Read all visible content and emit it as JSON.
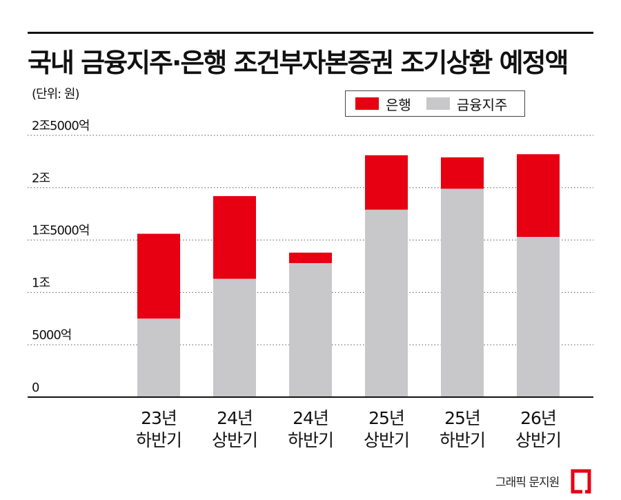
{
  "title": "국내 금융지주·은행 조건부자본증권 조기상환 예정액",
  "unit": "(단위: 원)",
  "credit": "그래픽 문지원",
  "legend": {
    "bank": "은행",
    "holding": "금융지주"
  },
  "colors": {
    "bank": "#e60012",
    "holding": "#c8c8cb",
    "grid": "#555555",
    "axis": "#111111"
  },
  "chart_data": {
    "type": "bar",
    "stacked": true,
    "title": "국내 금융지주·은행 조건부자본증권 조기상환 예정액",
    "ylabel": "(단위: 원)",
    "xlabel": "",
    "ylim": [
      0,
      25000
    ],
    "yticks": [
      {
        "value": 0,
        "label": "0"
      },
      {
        "value": 5000,
        "label": "5000억"
      },
      {
        "value": 10000,
        "label": "1조"
      },
      {
        "value": 15000,
        "label": "1조5000억"
      },
      {
        "value": 20000,
        "label": "2조"
      },
      {
        "value": 25000,
        "label": "2조5000억"
      }
    ],
    "categories": [
      {
        "line1": "23년",
        "line2": "하반기"
      },
      {
        "line1": "24년",
        "line2": "상반기"
      },
      {
        "line1": "24년",
        "line2": "하반기"
      },
      {
        "line1": "25년",
        "line2": "상반기"
      },
      {
        "line1": "25년",
        "line2": "하반기"
      },
      {
        "line1": "26년",
        "line2": "상반기"
      }
    ],
    "series": [
      {
        "name": "금융지주",
        "values": [
          7500,
          11300,
          12800,
          17900,
          19900,
          15300
        ]
      },
      {
        "name": "은행",
        "values": [
          8100,
          7900,
          1000,
          5200,
          3000,
          7900
        ]
      }
    ],
    "grid": true,
    "legend_position": "top-right"
  }
}
